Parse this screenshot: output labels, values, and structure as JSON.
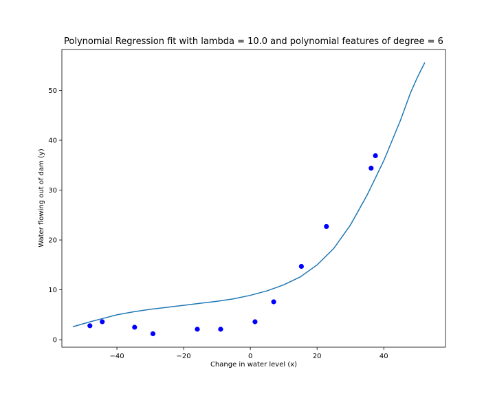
{
  "chart_data": {
    "type": "scatter",
    "title": "Polynomial Regression fit with lambda = 10.0 and polynomial features of degree = 6",
    "xlabel": "Change in water level (x)",
    "ylabel": "Water flowing out of dam (y)",
    "xlim": [
      -56.5,
      58.5
    ],
    "ylim": [
      -1.5,
      58.2
    ],
    "xticks": [
      -40,
      -20,
      0,
      20,
      40
    ],
    "xtick_labels": [
      "−40",
      "−20",
      "0",
      "20",
      "40"
    ],
    "yticks": [
      0,
      10,
      20,
      30,
      40,
      50
    ],
    "ytick_labels": [
      "0",
      "10",
      "20",
      "30",
      "40",
      "50"
    ],
    "grid": false,
    "series": [
      {
        "kind": "scatter",
        "color": "#0000ff",
        "x": [
          -48.1,
          -44.4,
          -34.7,
          -29.2,
          -15.9,
          -8.9,
          1.4,
          7.0,
          15.3,
          22.8,
          36.2,
          37.5
        ],
        "y": [
          2.8,
          3.6,
          2.5,
          1.2,
          2.1,
          2.1,
          3.6,
          7.6,
          14.7,
          22.7,
          34.4,
          36.9
        ]
      },
      {
        "kind": "line",
        "color": "#1f77b4",
        "x": [
          -53.2,
          -48,
          -44,
          -40,
          -35,
          -30,
          -25,
          -20,
          -15,
          -10,
          -5,
          0,
          5,
          10,
          15,
          20,
          25,
          30,
          35,
          40,
          45,
          48,
          50,
          52.3
        ],
        "y": [
          2.6,
          3.6,
          4.3,
          5.0,
          5.6,
          6.1,
          6.5,
          6.9,
          7.3,
          7.7,
          8.2,
          8.9,
          9.8,
          11.0,
          12.6,
          15.0,
          18.3,
          23.0,
          29.0,
          35.9,
          44.0,
          49.5,
          52.5,
          55.6
        ]
      }
    ]
  }
}
